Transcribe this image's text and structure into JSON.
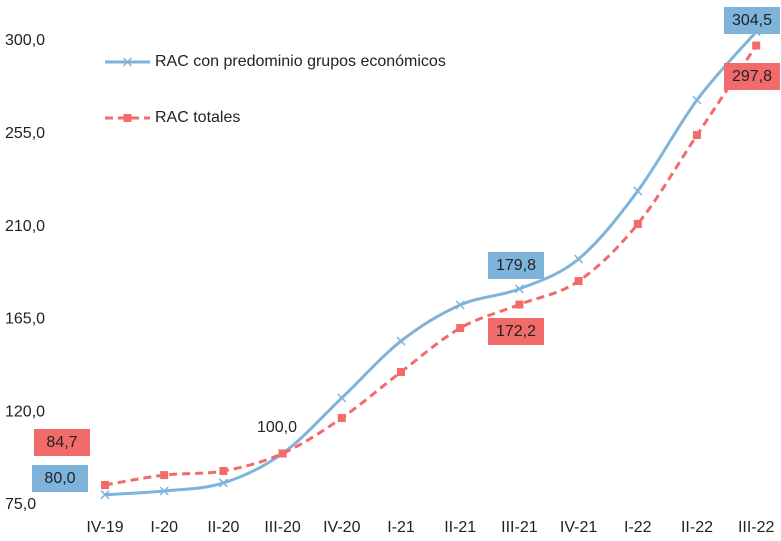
{
  "chart_data": {
    "type": "line",
    "categories": [
      "IV-19",
      "I-20",
      "II-20",
      "III-20",
      "IV-20",
      "I-21",
      "II-21",
      "III-21",
      "IV-21",
      "I-22",
      "II-22",
      "III-22"
    ],
    "series": [
      {
        "name": "RAC con predominio  grupos económicos",
        "color": "#7eb3dc",
        "values": [
          80.0,
          81.8,
          85.7,
          100.0,
          126.9,
          154.5,
          172.0,
          179.8,
          194.3,
          227.3,
          271.4,
          304.5
        ],
        "value_labels": [
          "80,0",
          null,
          null,
          "100,0",
          null,
          null,
          null,
          "179,8",
          null,
          null,
          null,
          "304,5"
        ]
      },
      {
        "name": "RAC totales",
        "color": "#f26b6b",
        "values": [
          84.7,
          89.5,
          91.5,
          100.0,
          117.2,
          139.5,
          160.8,
          172.2,
          183.6,
          211.3,
          254.4,
          297.8
        ],
        "value_labels": [
          "84,7",
          null,
          null,
          null,
          null,
          null,
          null,
          "172,2",
          null,
          null,
          null,
          "297,8"
        ]
      }
    ],
    "ylim": [
      75,
      305
    ],
    "yticks": [
      {
        "value": 75,
        "label": "75,0"
      },
      {
        "value": 120,
        "label": "120,0"
      },
      {
        "value": 165,
        "label": "165,0"
      },
      {
        "value": 210,
        "label": "210,0"
      },
      {
        "value": 255,
        "label": "255,0"
      },
      {
        "value": 300,
        "label": "300,0"
      }
    ],
    "grid": false,
    "legend": "top-left"
  }
}
